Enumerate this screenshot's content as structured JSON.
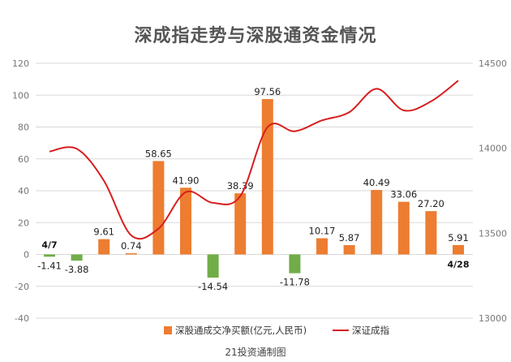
{
  "chart_data": {
    "type": "bar+line",
    "title": "深成指走势与深股通资金情况",
    "footer": "21投资通制图",
    "categories": [
      "4/7",
      "",
      "",
      "",
      "",
      "",
      "",
      "",
      "",
      "",
      "",
      "",
      "",
      "",
      "",
      "4/28"
    ],
    "first_date_label": "4/7",
    "last_date_label": "4/28",
    "series": [
      {
        "name": "深股通成交净买额(亿元,人民币)",
        "type": "bar",
        "axis": "left",
        "values": [
          -1.41,
          -3.88,
          9.61,
          0.74,
          58.65,
          41.9,
          -14.54,
          38.39,
          97.56,
          -11.78,
          10.17,
          5.87,
          40.49,
          33.06,
          27.2,
          5.91
        ],
        "labels": [
          "-1.41",
          "-3.88",
          "9.61",
          "0.74",
          "58.65",
          "41.90",
          "-14.54",
          "38.39",
          "97.56",
          "-11.78",
          "10.17",
          "5.87",
          "40.49",
          "33.06",
          "27.20",
          "5.91"
        ]
      },
      {
        "name": "深证成指",
        "type": "line",
        "axis": "right",
        "values": [
          13981,
          13997,
          13808,
          13487,
          13527,
          13742,
          13679,
          13718,
          14124,
          14100,
          14164,
          14212,
          14350,
          14223,
          14276,
          14398
        ]
      }
    ],
    "left_axis": {
      "min": -40,
      "max": 120,
      "ticks": [
        120,
        100,
        80,
        60,
        40,
        20,
        0,
        -20,
        -40
      ]
    },
    "right_axis": {
      "min": 13000,
      "max": 14500,
      "ticks": [
        14500,
        14000,
        13500,
        13000
      ]
    },
    "grid": true,
    "legend_position": "bottom",
    "colors": {
      "positive": "#ED7D31",
      "negative": "#70AD47",
      "line": "#D81E1E",
      "grid": "#D9D9D9"
    }
  }
}
